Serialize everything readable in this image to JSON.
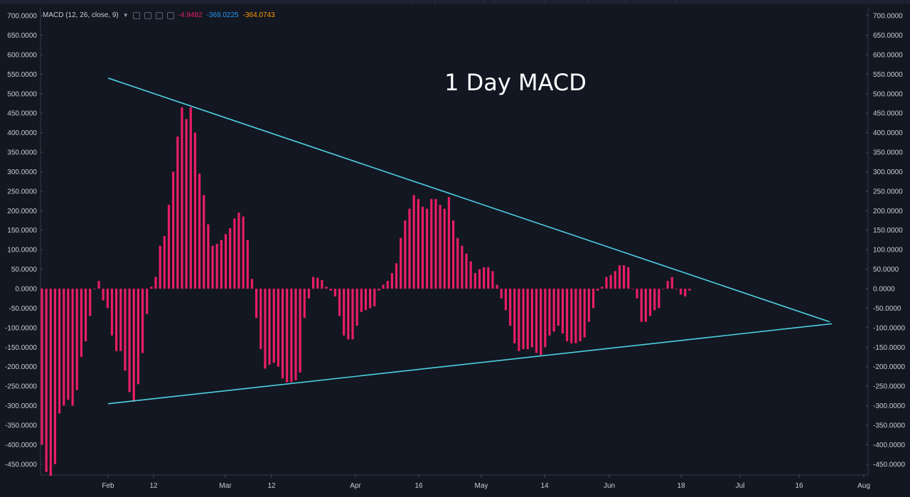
{
  "legend": {
    "name": "MACD (12, 26, close, 9)",
    "value_1": "-4.9482",
    "value_2": "-369.0225",
    "value_3": "-364.0743",
    "colors": {
      "value_1": "#e91e63",
      "value_2": "#2196f3",
      "value_3": "#ff9800"
    }
  },
  "colors": {
    "background": "#131722",
    "histogram": "#e91e63",
    "trendline": "#4dd0e1",
    "axis_text": "#c9ccd6",
    "grid": "#1f2330"
  },
  "chart_data": {
    "type": "bar",
    "title": "1 Day MACD",
    "ylim": [
      -480,
      720
    ],
    "y_ticks": [
      "700.0000",
      "650.0000",
      "600.0000",
      "550.0000",
      "500.0000",
      "450.0000",
      "400.0000",
      "350.0000",
      "300.0000",
      "250.0000",
      "200.0000",
      "150.0000",
      "100.0000",
      "50.0000",
      "0.0000",
      "-50.0000",
      "-100.0000",
      "-150.0000",
      "-200.0000",
      "-250.0000",
      "-300.0000",
      "-350.0000",
      "-400.0000",
      "-450.0000"
    ],
    "x_ticks": [
      "Feb",
      "12",
      "Mar",
      "12",
      "Apr",
      "16",
      "May",
      "14",
      "Jun",
      "18",
      "Jul",
      "16",
      "Aug"
    ],
    "grid": false,
    "series": [
      {
        "values": [
          -400,
          -470,
          -480,
          -450,
          -320,
          -300,
          -285,
          -300,
          -260,
          -175,
          -135,
          -70,
          0,
          20,
          -30,
          -50,
          -120,
          -160,
          -160,
          -210,
          -265,
          -290,
          -245,
          -165,
          -65,
          5,
          30,
          110,
          135,
          215,
          300,
          390,
          465,
          435,
          465,
          400,
          295,
          240,
          165,
          110,
          115,
          125,
          140,
          155,
          180,
          195,
          185,
          125,
          25,
          -75,
          -155,
          -205,
          -195,
          -190,
          -200,
          -230,
          -240,
          -240,
          -235,
          -215,
          -75,
          -25,
          30,
          28,
          22,
          5,
          -5,
          -20,
          -70,
          -120,
          -130,
          -130,
          -95,
          -60,
          -55,
          -50,
          -45,
          -5,
          10,
          20,
          40,
          65,
          130,
          175,
          205,
          240,
          230,
          210,
          205,
          230,
          230,
          215,
          205,
          235,
          175,
          130,
          110,
          90,
          70,
          40,
          50,
          55,
          55,
          45,
          10,
          -25,
          -55,
          -95,
          -140,
          -160,
          -155,
          -155,
          -150,
          -165,
          -170,
          -150,
          -120,
          -110,
          -95,
          -115,
          -135,
          -140,
          -140,
          -135,
          -125,
          -85,
          -50,
          -5,
          5,
          30,
          35,
          45,
          60,
          60,
          55,
          0,
          -25,
          -85,
          -85,
          -70,
          -55,
          -50,
          0,
          20,
          30,
          0,
          -15,
          -20,
          -5
        ]
      }
    ],
    "trendlines": [
      {
        "from": [
          "Feb",
          540
        ],
        "to": [
          "Jul 26",
          -85
        ]
      },
      {
        "from": [
          "Feb",
          -295
        ],
        "to": [
          "Jul 26",
          -90
        ]
      }
    ]
  }
}
